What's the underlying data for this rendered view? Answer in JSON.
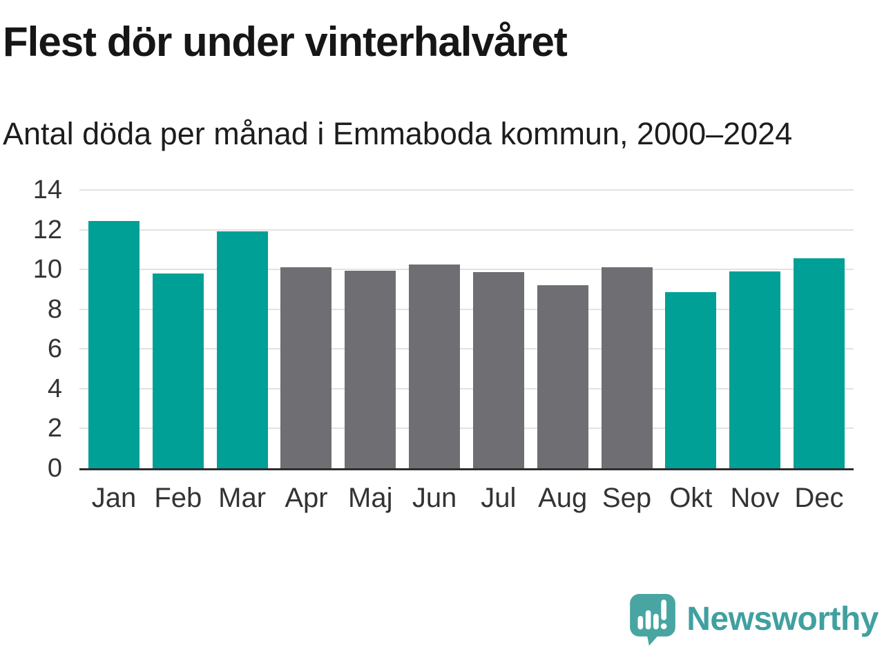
{
  "header": {
    "title": "Flest dör under vinterhalvåret",
    "subtitle": "Antal döda per månad i Emmaboda kommun, 2000–2024"
  },
  "chart_data": {
    "type": "bar",
    "categories": [
      "Jan",
      "Feb",
      "Mar",
      "Apr",
      "Maj",
      "Jun",
      "Jul",
      "Aug",
      "Sep",
      "Okt",
      "Nov",
      "Dec"
    ],
    "values": [
      12.45,
      9.8,
      11.9,
      10.1,
      9.95,
      10.25,
      9.85,
      9.2,
      10.1,
      8.85,
      9.9,
      10.55
    ],
    "color_groups": [
      "winter",
      "winter",
      "winter",
      "summer",
      "summer",
      "summer",
      "summer",
      "summer",
      "summer",
      "winter",
      "winter",
      "winter"
    ],
    "colors": {
      "winter": "#00a096",
      "summer": "#6e6e73"
    },
    "title": "Flest dör under vinterhalvåret",
    "subtitle": "Antal döda per månad i Emmaboda kommun, 2000–2024",
    "xlabel": "",
    "ylabel": "",
    "ylim": [
      0,
      14
    ],
    "yticks": [
      0,
      2,
      4,
      6,
      8,
      10,
      12,
      14
    ],
    "grid": true,
    "legend": false,
    "gridline_color": "#e2e2e2",
    "axis_line_color": "#2d2d2d",
    "tick_label_color": "#333333"
  },
  "footer": {
    "brand": "Newsworthy",
    "brand_color": "#40a0a0",
    "icon": "newsworthy-speech-bubble-chart-icon"
  }
}
